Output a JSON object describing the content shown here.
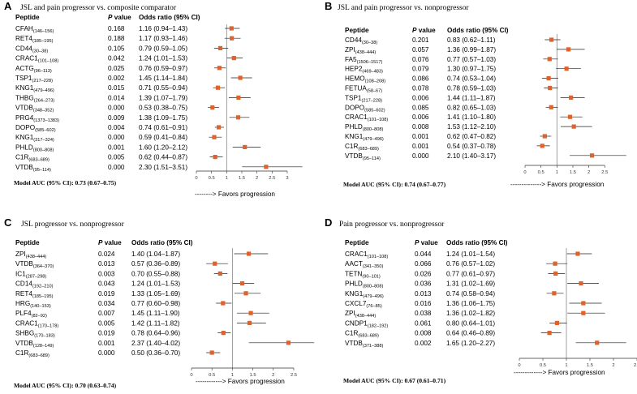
{
  "chart_data": [
    {
      "type": "forest",
      "panel": "A",
      "title": "JSL and pain progressor vs. composite comparator",
      "col_peptide": "Peptide",
      "col_pvalue": "P value",
      "col_or": "Odds ratio (95% CI)",
      "xlim": [
        0,
        3
      ],
      "xticks": [
        "0",
        "0.5",
        "1",
        "1.5",
        "2",
        "2.5",
        "3"
      ],
      "ref": 1,
      "auc": "Model AUC (95% CI): 0.73 (0.67–0.75)",
      "favors": "--------> Favors progression",
      "rows": [
        {
          "name": "CFAH",
          "range": "(146–156)",
          "p": "0.168",
          "or_text": "1.16 (0.94–1.43)",
          "or": 1.16,
          "lo": 0.94,
          "hi": 1.43
        },
        {
          "name": "RET4",
          "range": "(185–195)",
          "p": "0.188",
          "or_text": "1.17 (0.93–1.46)",
          "or": 1.17,
          "lo": 0.93,
          "hi": 1.46
        },
        {
          "name": "CD44",
          "range": "(30–38)",
          "p": "0.105",
          "or_text": "0.79 (0.59–1.05)",
          "or": 0.79,
          "lo": 0.59,
          "hi": 1.05
        },
        {
          "name": "CRAC1",
          "range": "(101–108)",
          "p": "0.042",
          "or_text": "1.24 (1.01–1.53)",
          "or": 1.24,
          "lo": 1.01,
          "hi": 1.53
        },
        {
          "name": "ACTG",
          "range": "(96–113)",
          "p": "0.025",
          "or_text": "0.76 (0.59–0.97)",
          "or": 0.76,
          "lo": 0.59,
          "hi": 0.97
        },
        {
          "name": "TSP1",
          "range": "(217–228)",
          "p": "0.002",
          "or_text": "1.45 (1.14–1.84)",
          "or": 1.45,
          "lo": 1.14,
          "hi": 1.84
        },
        {
          "name": "KNG1",
          "range": "(479–496)",
          "p": "0.015",
          "or_text": "0.71 (0.55–0.94)",
          "or": 0.71,
          "lo": 0.55,
          "hi": 0.94
        },
        {
          "name": "THBG",
          "range": "(264–273)",
          "p": "0.014",
          "or_text": "1.39 (1.07–1.79)",
          "or": 1.39,
          "lo": 1.07,
          "hi": 1.79
        },
        {
          "name": "VTDB",
          "range": "(348–352)",
          "p": "0.000",
          "or_text": "0.53 (0.38–0.75)",
          "or": 0.53,
          "lo": 0.38,
          "hi": 0.75
        },
        {
          "name": "PRG4",
          "range": "(1373–1383)",
          "p": "0.009",
          "or_text": "1.38 (1.09–1.75)",
          "or": 1.38,
          "lo": 1.09,
          "hi": 1.75
        },
        {
          "name": "DOPO",
          "range": "(585–602)",
          "p": "0.004",
          "or_text": "0.74 (0.61–0.91)",
          "or": 0.74,
          "lo": 0.61,
          "hi": 0.91
        },
        {
          "name": "KNG1",
          "range": "(317–324)",
          "p": "0.000",
          "or_text": "0.59 (0.41–0.84)",
          "or": 0.59,
          "lo": 0.41,
          "hi": 0.84
        },
        {
          "name": "PHLD",
          "range": "(800–808)",
          "p": "0.001",
          "or_text": "1.60 (1.20–2.12)",
          "or": 1.6,
          "lo": 1.2,
          "hi": 2.12
        },
        {
          "name": "C1R",
          "range": "(683–689)",
          "p": "0.005",
          "or_text": "0.62 (0.44–0.87)",
          "or": 0.62,
          "lo": 0.44,
          "hi": 0.87
        },
        {
          "name": "VTDB",
          "range": "(95–114)",
          "p": "0.000",
          "or_text": "2.30 (1.51–3.51)",
          "or": 2.3,
          "lo": 1.51,
          "hi": 3.51
        }
      ]
    },
    {
      "type": "forest",
      "panel": "B",
      "title": "JSL and pain progressor vs. nonprogressor",
      "col_peptide": "Peptide",
      "col_pvalue": "P value",
      "col_or": "Odds ratio (95% CI)",
      "xlim": [
        0,
        3
      ],
      "xticks": [
        "0",
        "0.5",
        "1",
        "1.5",
        "2",
        "2.5"
      ],
      "ref": 1,
      "auc": "Model AUC (95% CI): 0.74 (0.67–0.77)",
      "favors": "--------------> Favors progression",
      "rows": [
        {
          "name": "CD44",
          "range": "(30–38)",
          "p": "0.201",
          "or_text": "0.83 (0.62–1.11)",
          "or": 0.83,
          "lo": 0.62,
          "hi": 1.11
        },
        {
          "name": "ZPI",
          "range": "(438–444)",
          "p": "0.057",
          "or_text": "1.36 (0.99–1.87)",
          "or": 1.36,
          "lo": 0.99,
          "hi": 1.87
        },
        {
          "name": "FA5",
          "range": "(1506–1517)",
          "p": "0.076",
          "or_text": "0.77 (0.57–1.03)",
          "or": 0.77,
          "lo": 0.57,
          "hi": 1.03
        },
        {
          "name": "HEP2",
          "range": "(469–483)",
          "p": "0.079",
          "or_text": "1.30 (0.97–1.75)",
          "or": 1.3,
          "lo": 0.97,
          "hi": 1.75
        },
        {
          "name": "HEMO",
          "range": "(108–208)",
          "p": "0.086",
          "or_text": "0.74 (0.53–1.04)",
          "or": 0.74,
          "lo": 0.53,
          "hi": 1.04
        },
        {
          "name": "FETUA",
          "range": "(58–67)",
          "p": "0.078",
          "or_text": "0.78 (0.59–1.03)",
          "or": 0.78,
          "lo": 0.59,
          "hi": 1.03
        },
        {
          "name": "TSP1",
          "range": "(217–228)",
          "p": "0.006",
          "or_text": "1.44 (1.11–1.87)",
          "or": 1.44,
          "lo": 1.11,
          "hi": 1.87
        },
        {
          "name": "DOPO",
          "range": "(585–602)",
          "p": "0.085",
          "or_text": "0.82 (0.65–1.03)",
          "or": 0.82,
          "lo": 0.65,
          "hi": 1.03
        },
        {
          "name": "CRAC1",
          "range": "(101–108)",
          "p": "0.006",
          "or_text": "1.41 (1.10–1.80)",
          "or": 1.41,
          "lo": 1.1,
          "hi": 1.8
        },
        {
          "name": "PHLD",
          "range": "(800–808)",
          "p": "0.008",
          "or_text": "1.53 (1.12–2.10)",
          "or": 1.53,
          "lo": 1.12,
          "hi": 2.1
        },
        {
          "name": "KNG1",
          "range": "(479–496)",
          "p": "0.001",
          "or_text": "0.62 (0.47–0.82)",
          "or": 0.62,
          "lo": 0.47,
          "hi": 0.82
        },
        {
          "name": "C1R",
          "range": "(683–689)",
          "p": "0.001",
          "or_text": "0.54 (0.37–0.78)",
          "or": 0.54,
          "lo": 0.37,
          "hi": 0.78
        },
        {
          "name": "VTDB",
          "range": "(95–114)",
          "p": "0.000",
          "or_text": "2.10 (1.40–3.17)",
          "or": 2.1,
          "lo": 1.4,
          "hi": 3.17
        }
      ]
    },
    {
      "type": "forest",
      "panel": "C",
      "title": "JSL progressor vs. nonprogressor",
      "col_peptide": "Peptide",
      "col_pvalue": "P value",
      "col_or": "Odds ratio (95% CI)",
      "xlim": [
        0,
        2.5
      ],
      "xticks": [
        "0",
        "0.5",
        "1",
        "1.5",
        "2",
        "2.5"
      ],
      "ref": 1,
      "auc": "Model AUC (95% CI): 0.70 (0.63–0.74)",
      "favors": "------------> Favors progression",
      "rows": [
        {
          "name": "ZPI",
          "range": "(438–444)",
          "p": "0.024",
          "or_text": "1.40 (1.04–1.87)",
          "or": 1.4,
          "lo": 1.04,
          "hi": 1.87
        },
        {
          "name": "VTDB",
          "range": "(364–370)",
          "p": "0.013",
          "or_text": "0.57 (0.36–0.89)",
          "or": 0.57,
          "lo": 0.36,
          "hi": 0.89
        },
        {
          "name": "IC1",
          "range": "(287–298)",
          "p": "0.003",
          "or_text": "0.70 (0.55–0.88)",
          "or": 0.7,
          "lo": 0.55,
          "hi": 0.88
        },
        {
          "name": "CD14",
          "range": "(192–210)",
          "p": "0.043",
          "or_text": "1.24 (1.01–1.53)",
          "or": 1.24,
          "lo": 1.01,
          "hi": 1.53
        },
        {
          "name": "RET4",
          "range": "(185–195)",
          "p": "0.019",
          "or_text": "1.33 (1.05–1.69)",
          "or": 1.33,
          "lo": 1.05,
          "hi": 1.69
        },
        {
          "name": "HRG",
          "range": "(140–153)",
          "p": "0.034",
          "or_text": "0.77 (0.60–0.98)",
          "or": 0.77,
          "lo": 0.6,
          "hi": 0.98
        },
        {
          "name": "PLF4",
          "range": "(82–92)",
          "p": "0.007",
          "or_text": "1.45 (1.11–1.90)",
          "or": 1.45,
          "lo": 1.11,
          "hi": 1.9
        },
        {
          "name": "CRAC1",
          "range": "(170–178)",
          "p": "0.005",
          "or_text": "1.42 (1.11–1.82)",
          "or": 1.42,
          "lo": 1.11,
          "hi": 1.82
        },
        {
          "name": "SHBG",
          "range": "(170–183)",
          "p": "0.019",
          "or_text": "0.78 (0.64–0.96)",
          "or": 0.78,
          "lo": 0.64,
          "hi": 0.96
        },
        {
          "name": "VTDB",
          "range": "(128–149)",
          "p": "0.001",
          "or_text": "2.37 (1.40–4.02)",
          "or": 2.37,
          "lo": 1.4,
          "hi": 4.02
        },
        {
          "name": "C1R",
          "range": "(683–689)",
          "p": "0.000",
          "or_text": "0.50 (0.36–0.70)",
          "or": 0.5,
          "lo": 0.36,
          "hi": 0.7
        }
      ]
    },
    {
      "type": "forest",
      "panel": "D",
      "title": "Pain progressor vs. nonprogressor",
      "col_peptide": "Peptide",
      "col_pvalue": "P value",
      "col_or": "Odds ratio (95% CI)",
      "xlim": [
        0,
        2.5
      ],
      "xticks": [
        "0",
        "0.5",
        "1",
        "1.5",
        "2",
        "2.5"
      ],
      "ref": 1,
      "auc": "Model AUC (95% CI): 0.67 (0.61–0.71)",
      "favors": "-------------> Favors progression",
      "rows": [
        {
          "name": "CRAC1",
          "range": "(101–108)",
          "p": "0.044",
          "or_text": "1.24 (1.01–1.54)",
          "or": 1.24,
          "lo": 1.01,
          "hi": 1.54
        },
        {
          "name": "AACT",
          "range": "(341–350)",
          "p": "0.066",
          "or_text": "0.76 (0.57–1.02)",
          "or": 0.76,
          "lo": 0.57,
          "hi": 1.02
        },
        {
          "name": "TETN",
          "range": "(90–101)",
          "p": "0.026",
          "or_text": "0.77 (0.61–0.97)",
          "or": 0.77,
          "lo": 0.61,
          "hi": 0.97
        },
        {
          "name": "PHLD",
          "range": "(800–808)",
          "p": "0.036",
          "or_text": "1.31 (1.02–1.69)",
          "or": 1.31,
          "lo": 1.02,
          "hi": 1.69
        },
        {
          "name": "KNG1",
          "range": "(479–496)",
          "p": "0.013",
          "or_text": "0.74 (0.58–0.94)",
          "or": 0.74,
          "lo": 0.58,
          "hi": 0.94
        },
        {
          "name": "CXCL7",
          "range": "(76–85)",
          "p": "0.016",
          "or_text": "1.36 (1.06–1.75)",
          "or": 1.36,
          "lo": 1.06,
          "hi": 1.75
        },
        {
          "name": "ZPI",
          "range": "(438–444)",
          "p": "0.038",
          "or_text": "1.36 (1.02–1.82)",
          "or": 1.36,
          "lo": 1.02,
          "hi": 1.82
        },
        {
          "name": "CNDP1",
          "range": "(182–192)",
          "p": "0.061",
          "or_text": "0.80 (0.64–1.01)",
          "or": 0.8,
          "lo": 0.64,
          "hi": 1.01
        },
        {
          "name": "C1R",
          "range": "(683–689)",
          "p": "0.008",
          "or_text": "0.64 (0.46–0.89)",
          "or": 0.64,
          "lo": 0.46,
          "hi": 0.89
        },
        {
          "name": "VTDB",
          "range": "(371–388)",
          "p": "0.002",
          "or_text": "1.65 (1.20–2.27)",
          "or": 1.65,
          "lo": 1.2,
          "hi": 2.27
        }
      ]
    }
  ]
}
